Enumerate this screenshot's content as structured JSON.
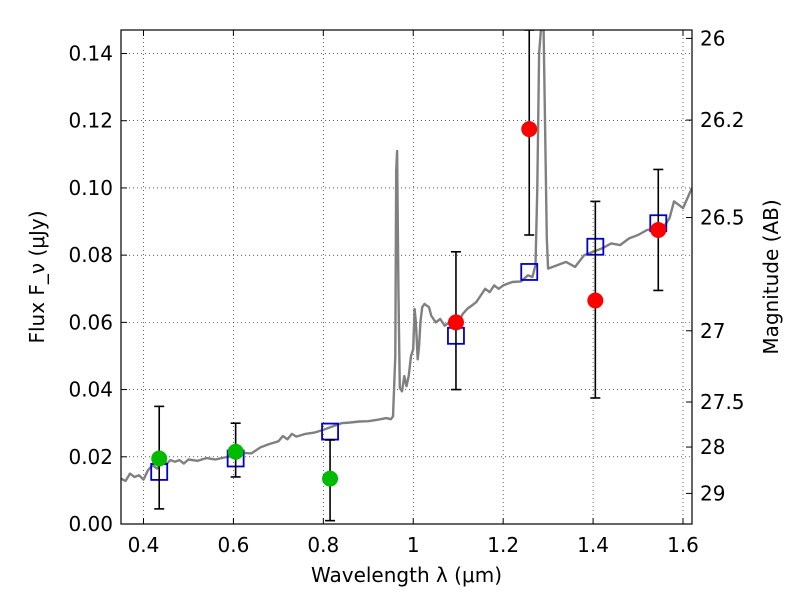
{
  "chart_data": {
    "type": "scatter",
    "xlabel": "Wavelength λ (μm)",
    "ylabel": "Flux F_ν (μJy)",
    "ylabel_right": "Magnitude (AB)",
    "xlim": [
      0.35,
      1.62
    ],
    "ylim": [
      0.0,
      0.147
    ],
    "x_ticks": [
      0.4,
      0.6,
      0.8,
      1.0,
      1.2,
      1.4,
      1.6
    ],
    "x_tick_labels": [
      "0.4",
      "0.6",
      "0.8",
      "1",
      "1.2",
      "1.4",
      "1.6"
    ],
    "y_ticks": [
      0.0,
      0.02,
      0.04,
      0.06,
      0.08,
      0.1,
      0.12,
      0.14
    ],
    "y_tick_labels": [
      "0.00",
      "0.02",
      "0.04",
      "0.06",
      "0.08",
      "0.10",
      "0.12",
      "0.14"
    ],
    "right_ticks": [
      {
        "label": "26",
        "flux": 0.1445
      },
      {
        "label": "26.2",
        "flux": 0.1202
      },
      {
        "label": "26.5",
        "flux": 0.0912
      },
      {
        "label": "27",
        "flux": 0.0575
      },
      {
        "label": "27.5",
        "flux": 0.0363
      },
      {
        "label": "28",
        "flux": 0.0229
      },
      {
        "label": "29",
        "flux": 0.0091
      }
    ],
    "grid": true,
    "colors": {
      "spectrum": "#808080",
      "model_box": "#0000cc",
      "green_points": "#00bb00",
      "red_points": "#ff0000",
      "errorbar": "#000000"
    },
    "series": [
      {
        "kind": "spectrum",
        "points": [
          [
            0.35,
            0.0135
          ],
          [
            0.36,
            0.0128
          ],
          [
            0.37,
            0.015
          ],
          [
            0.38,
            0.014
          ],
          [
            0.39,
            0.0145
          ],
          [
            0.4,
            0.0132
          ],
          [
            0.41,
            0.016
          ],
          [
            0.42,
            0.0175
          ],
          [
            0.43,
            0.0165
          ],
          [
            0.44,
            0.0182
          ],
          [
            0.45,
            0.0178
          ],
          [
            0.46,
            0.019
          ],
          [
            0.47,
            0.0185
          ],
          [
            0.48,
            0.019
          ],
          [
            0.49,
            0.018
          ],
          [
            0.5,
            0.0192
          ],
          [
            0.52,
            0.0188
          ],
          [
            0.54,
            0.0196
          ],
          [
            0.56,
            0.0192
          ],
          [
            0.58,
            0.0198
          ],
          [
            0.6,
            0.0202
          ],
          [
            0.62,
            0.0212
          ],
          [
            0.64,
            0.021
          ],
          [
            0.66,
            0.0228
          ],
          [
            0.68,
            0.0238
          ],
          [
            0.7,
            0.0246
          ],
          [
            0.71,
            0.0262
          ],
          [
            0.72,
            0.0252
          ],
          [
            0.73,
            0.0268
          ],
          [
            0.74,
            0.026
          ],
          [
            0.76,
            0.0268
          ],
          [
            0.78,
            0.0272
          ],
          [
            0.8,
            0.028
          ],
          [
            0.82,
            0.029
          ],
          [
            0.84,
            0.03
          ],
          [
            0.86,
            0.0302
          ],
          [
            0.88,
            0.0305
          ],
          [
            0.9,
            0.0306
          ],
          [
            0.92,
            0.031
          ],
          [
            0.94,
            0.0315
          ],
          [
            0.95,
            0.0312
          ],
          [
            0.955,
            0.032
          ],
          [
            0.96,
            0.05
          ],
          [
            0.962,
            0.105
          ],
          [
            0.964,
            0.111
          ],
          [
            0.967,
            0.07
          ],
          [
            0.97,
            0.0405
          ],
          [
            0.975,
            0.0395
          ],
          [
            0.98,
            0.044
          ],
          [
            0.985,
            0.041
          ],
          [
            0.99,
            0.044
          ],
          [
            0.995,
            0.05
          ],
          [
            1.0,
            0.052
          ],
          [
            1.003,
            0.064
          ],
          [
            1.006,
            0.06
          ],
          [
            1.01,
            0.049
          ],
          [
            1.013,
            0.053
          ],
          [
            1.016,
            0.06
          ],
          [
            1.02,
            0.0645
          ],
          [
            1.025,
            0.0655
          ],
          [
            1.03,
            0.065
          ],
          [
            1.035,
            0.0645
          ],
          [
            1.04,
            0.062
          ],
          [
            1.05,
            0.06
          ],
          [
            1.06,
            0.061
          ],
          [
            1.07,
            0.059
          ],
          [
            1.08,
            0.06
          ],
          [
            1.09,
            0.059
          ],
          [
            1.1,
            0.06
          ],
          [
            1.11,
            0.0625
          ],
          [
            1.12,
            0.064
          ],
          [
            1.13,
            0.065
          ],
          [
            1.14,
            0.066
          ],
          [
            1.15,
            0.068
          ],
          [
            1.16,
            0.07
          ],
          [
            1.17,
            0.069
          ],
          [
            1.18,
            0.071
          ],
          [
            1.19,
            0.07
          ],
          [
            1.2,
            0.071
          ],
          [
            1.22,
            0.072
          ],
          [
            1.24,
            0.0722
          ],
          [
            1.255,
            0.074
          ],
          [
            1.265,
            0.0735
          ],
          [
            1.272,
            0.077
          ],
          [
            1.276,
            0.1
          ],
          [
            1.28,
            0.14
          ],
          [
            1.284,
            0.147
          ],
          [
            1.29,
            0.147
          ],
          [
            1.293,
            0.12
          ],
          [
            1.297,
            0.085
          ],
          [
            1.3,
            0.076
          ],
          [
            1.32,
            0.077
          ],
          [
            1.34,
            0.078
          ],
          [
            1.36,
            0.0765
          ],
          [
            1.38,
            0.08
          ],
          [
            1.4,
            0.081
          ],
          [
            1.42,
            0.082
          ],
          [
            1.44,
            0.0835
          ],
          [
            1.46,
            0.083
          ],
          [
            1.48,
            0.085
          ],
          [
            1.5,
            0.086
          ],
          [
            1.52,
            0.0875
          ],
          [
            1.54,
            0.088
          ],
          [
            1.56,
            0.089
          ],
          [
            1.57,
            0.091
          ],
          [
            1.58,
            0.096
          ],
          [
            1.59,
            0.095
          ],
          [
            1.6,
            0.094
          ],
          [
            1.61,
            0.097
          ],
          [
            1.62,
            0.1
          ]
        ]
      },
      {
        "kind": "model_boxes",
        "x": [
          0.435,
          0.605,
          0.815,
          1.095,
          1.258,
          1.405,
          1.545
        ],
        "y": [
          0.0155,
          0.0195,
          0.0275,
          0.056,
          0.075,
          0.0825,
          0.0895
        ]
      },
      {
        "kind": "observed_green",
        "x": [
          0.435,
          0.605,
          0.815
        ],
        "y": [
          0.0195,
          0.0215,
          0.0135
        ],
        "yerr_low": [
          0.0045,
          0.014,
          0.001
        ],
        "yerr_high": [
          0.035,
          0.03,
          0.025
        ]
      },
      {
        "kind": "observed_red",
        "x": [
          1.095,
          1.258,
          1.405,
          1.545
        ],
        "y": [
          0.06,
          0.1175,
          0.0665,
          0.0875
        ],
        "yerr_low": [
          0.04,
          0.086,
          0.0375,
          0.0695
        ],
        "yerr_high": [
          0.081,
          0.147,
          0.096,
          0.1055
        ]
      }
    ]
  }
}
